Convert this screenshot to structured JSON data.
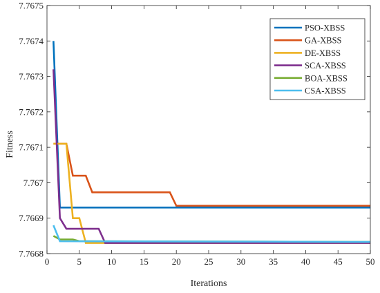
{
  "chart_data": {
    "type": "line",
    "title": "",
    "xlabel": "Iterations",
    "ylabel": "Fitness",
    "xlim": [
      0,
      50
    ],
    "ylim": [
      7.7668,
      7.7675
    ],
    "xticks": [
      0,
      5,
      10,
      15,
      20,
      25,
      30,
      35,
      40,
      45,
      50
    ],
    "xtick_labels": [
      "0",
      "5",
      "10",
      "15",
      "20",
      "25",
      "30",
      "35",
      "40",
      "45",
      "50"
    ],
    "yticks": [
      7.7668,
      7.7669,
      7.767,
      7.7671,
      7.7672,
      7.7673,
      7.7674,
      7.7675
    ],
    "ytick_labels": [
      "7.7668",
      "7.7669",
      "7.767",
      "7.7671",
      "7.7672",
      "7.7673",
      "7.7674",
      "7.7675"
    ],
    "grid": false,
    "legend_position": "top-right",
    "series": [
      {
        "name": "PSO-XBSS",
        "color": "#0072BD",
        "points": [
          [
            1,
            7.7674
          ],
          [
            2,
            7.76693
          ],
          [
            50,
            7.76693
          ]
        ]
      },
      {
        "name": "GA-XBSS",
        "color": "#D95319",
        "points": [
          [
            1,
            7.76711
          ],
          [
            3,
            7.76711
          ],
          [
            4,
            7.76702
          ],
          [
            6,
            7.76702
          ],
          [
            7,
            7.766973
          ],
          [
            19,
            7.766973
          ],
          [
            20,
            7.766935
          ],
          [
            50,
            7.766935
          ]
        ]
      },
      {
        "name": "DE-XBSS",
        "color": "#EDB120",
        "points": [
          [
            1,
            7.76711
          ],
          [
            3,
            7.76711
          ],
          [
            4,
            7.7669
          ],
          [
            5,
            7.7669
          ],
          [
            6,
            7.76683
          ],
          [
            50,
            7.76683
          ]
        ]
      },
      {
        "name": "SCA-XBSS",
        "color": "#7E2F8E",
        "points": [
          [
            1,
            7.76732
          ],
          [
            2,
            7.7669
          ],
          [
            3,
            7.76687
          ],
          [
            8,
            7.76687
          ],
          [
            9,
            7.76683
          ],
          [
            50,
            7.76683
          ]
        ]
      },
      {
        "name": "BOA-XBSS",
        "color": "#77AC30",
        "points": [
          [
            1,
            7.76685
          ],
          [
            2,
            7.76684
          ],
          [
            4,
            7.76684
          ],
          [
            5,
            7.766835
          ],
          [
            50,
            7.766833
          ]
        ]
      },
      {
        "name": "CSA-XBSS",
        "color": "#4DBEEE",
        "points": [
          [
            1,
            7.76688
          ],
          [
            2,
            7.766835
          ],
          [
            50,
            7.766833
          ]
        ]
      }
    ]
  }
}
